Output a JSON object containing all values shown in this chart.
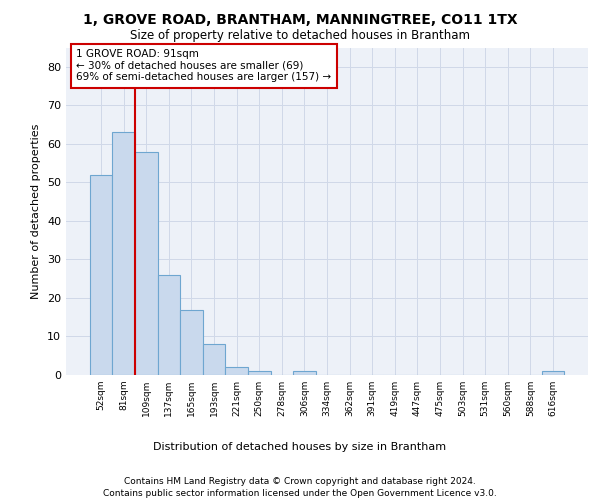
{
  "title": "1, GROVE ROAD, BRANTHAM, MANNINGTREE, CO11 1TX",
  "subtitle": "Size of property relative to detached houses in Brantham",
  "xlabel": "Distribution of detached houses by size in Brantham",
  "ylabel": "Number of detached properties",
  "bar_color": "#c9d9ed",
  "bar_edge_color": "#6ea6d0",
  "categories": [
    "52sqm",
    "81sqm",
    "109sqm",
    "137sqm",
    "165sqm",
    "193sqm",
    "221sqm",
    "250sqm",
    "278sqm",
    "306sqm",
    "334sqm",
    "362sqm",
    "391sqm",
    "419sqm",
    "447sqm",
    "475sqm",
    "503sqm",
    "531sqm",
    "560sqm",
    "588sqm",
    "616sqm"
  ],
  "values": [
    52,
    63,
    58,
    26,
    17,
    8,
    2,
    1,
    0,
    1,
    0,
    0,
    0,
    0,
    0,
    0,
    0,
    0,
    0,
    0,
    1
  ],
  "ylim": [
    0,
    85
  ],
  "yticks": [
    0,
    10,
    20,
    30,
    40,
    50,
    60,
    70,
    80
  ],
  "red_line_x": 1.5,
  "annotation_text": "1 GROVE ROAD: 91sqm\n← 30% of detached houses are smaller (69)\n69% of semi-detached houses are larger (157) →",
  "annotation_box_color": "#ffffff",
  "annotation_border_color": "#cc0000",
  "footer_line1": "Contains HM Land Registry data © Crown copyright and database right 2024.",
  "footer_line2": "Contains public sector information licensed under the Open Government Licence v3.0.",
  "grid_color": "#d0d8e8",
  "background_color": "#edf1f8"
}
